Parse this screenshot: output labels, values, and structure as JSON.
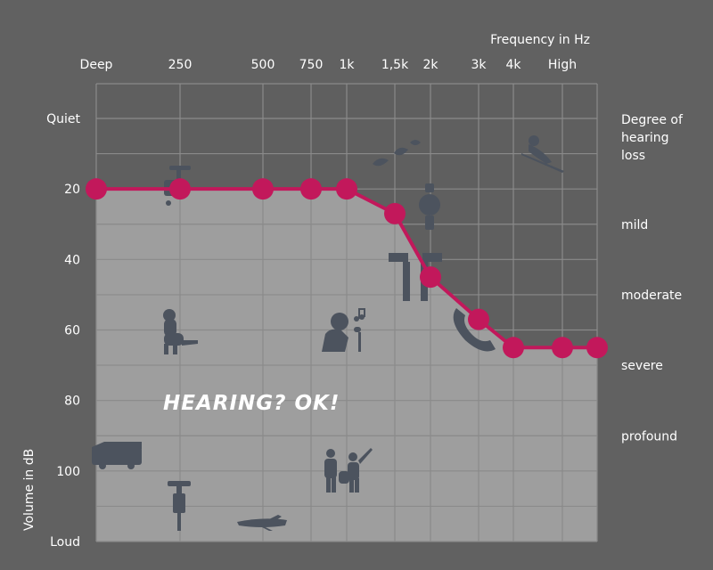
{
  "chart_data": {
    "type": "line",
    "xlabel": "Frequency in Hz",
    "ylabel": "Volume in dB",
    "x_ticks": [
      "Deep",
      "250",
      "500",
      "750",
      "1k",
      "1,5k",
      "2k",
      "3k",
      "4k",
      "High"
    ],
    "y_ticks": [
      "Quiet",
      "20",
      "40",
      "60",
      "80",
      "100",
      "Loud"
    ],
    "ylim": [
      0,
      120
    ],
    "y_tick_values": [
      0,
      20,
      40,
      60,
      80,
      100,
      120
    ],
    "right_title": [
      "Degree of",
      "hearing",
      "loss"
    ],
    "degree_labels": [
      {
        "label": "mild",
        "db": 30
      },
      {
        "label": "moderate",
        "db": 50
      },
      {
        "label": "severe",
        "db": 70
      },
      {
        "label": "profound",
        "db": 90
      }
    ],
    "series": [
      {
        "x": [
          "Deep",
          "250",
          "500",
          "750",
          "1k",
          "1,5k",
          "2k",
          "3k",
          "4k",
          "High",
          "High"
        ],
        "values": [
          20,
          20,
          20,
          20,
          20,
          27,
          45,
          57,
          65,
          65,
          65
        ]
      }
    ],
    "annotation": "HEARING? OK!",
    "grid": true,
    "colors": {
      "line": "#c2185b",
      "point": "#c2185b",
      "heard_area": "#9e9e9e",
      "unheard_area": "#5f5f5f",
      "grid": "#8a8a8a",
      "icon": "#4c535e",
      "background": "#616161"
    },
    "icons": [
      "water-tap-icon",
      "dog-icon",
      "van-icon",
      "jackhammer-icon",
      "airplane-icon",
      "leaves-icon",
      "singer-icon",
      "music-note-icon",
      "band-icon",
      "speakers-icon",
      "watch-icon",
      "telephone-icon",
      "bird-icon"
    ]
  }
}
